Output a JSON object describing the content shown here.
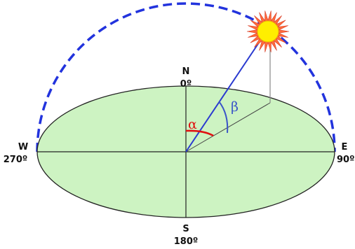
{
  "directions": {
    "north": {
      "letter": "N",
      "degrees": "0º"
    },
    "east": {
      "letter": "E",
      "degrees": "90º"
    },
    "south": {
      "letter": "S",
      "degrees": "180º"
    },
    "west": {
      "letter": "W",
      "degrees": "270º"
    }
  },
  "angles": {
    "azimuth": {
      "symbol": "α",
      "color": "#e01010"
    },
    "altitude": {
      "symbol": "β",
      "color": "#3a55c8"
    }
  },
  "colors": {
    "ground": "#cdf3c2",
    "sky_arc": "#2233dd",
    "sun_core": "#ffee00",
    "sun_rays": "#ff6a3a"
  }
}
